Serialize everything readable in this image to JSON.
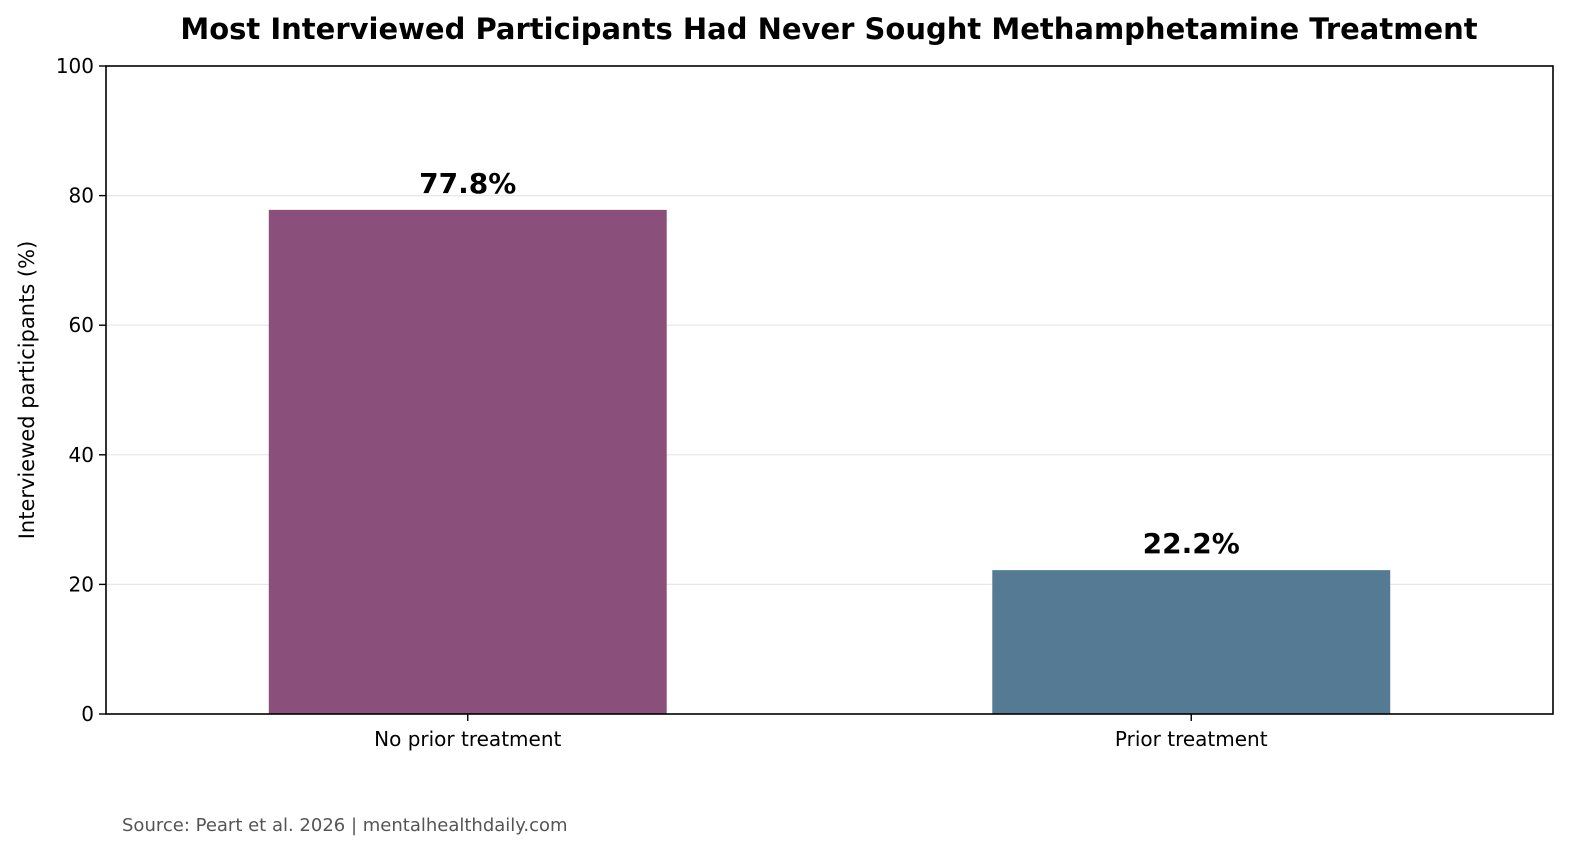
{
  "chart_data": {
    "type": "bar",
    "title": "Most Interviewed Participants Had Never Sought Methamphetamine Treatment",
    "xlabel": "",
    "ylabel": "Interviewed participants (%)",
    "categories": [
      "No prior treatment",
      "Prior treatment"
    ],
    "values": [
      77.8,
      22.2
    ],
    "data_labels": [
      "77.8%",
      "22.2%"
    ],
    "colors": [
      "#8b4f7c",
      "#557a94"
    ],
    "ylim": [
      0,
      100
    ],
    "yticks": [
      0,
      20,
      40,
      60,
      80,
      100
    ],
    "grid": "horizontal",
    "legend": "none"
  },
  "footer": {
    "source": "Source: Peart et al. 2026 | mentalhealthdaily.com"
  }
}
